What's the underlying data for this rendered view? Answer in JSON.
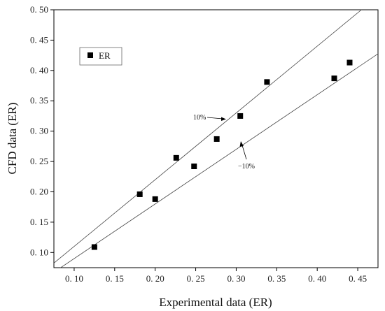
{
  "chart_data": {
    "type": "scatter",
    "xlabel": "Experimental data (ER)",
    "ylabel": "CFD data  (ER)",
    "xlim": [
      0.075,
      0.475
    ],
    "ylim": [
      0.075,
      0.5
    ],
    "xticks": [
      "0. 10",
      "0. 15",
      "0. 20",
      "0. 25",
      "0. 30",
      "0. 35",
      "0. 40",
      "0. 45"
    ],
    "yticks": [
      "0. 10",
      "0. 15",
      "0. 20",
      "0. 25",
      "0. 30",
      "0. 35",
      "0. 40",
      "0. 45",
      "0. 50"
    ],
    "legend": {
      "label": "ER",
      "position": "top-left"
    },
    "series": [
      {
        "name": "ER",
        "x": [
          0.125,
          0.181,
          0.2,
          0.226,
          0.248,
          0.276,
          0.305,
          0.338,
          0.421,
          0.44
        ],
        "y": [
          0.109,
          0.196,
          0.188,
          0.256,
          0.242,
          0.287,
          0.325,
          0.381,
          0.387,
          0.413
        ]
      }
    ],
    "reference_lines": [
      {
        "label": "10%",
        "slope": 1.1
      },
      {
        "label": "−10%",
        "slope": 0.9
      }
    ],
    "annotations": [
      "10%",
      "−10%"
    ]
  }
}
